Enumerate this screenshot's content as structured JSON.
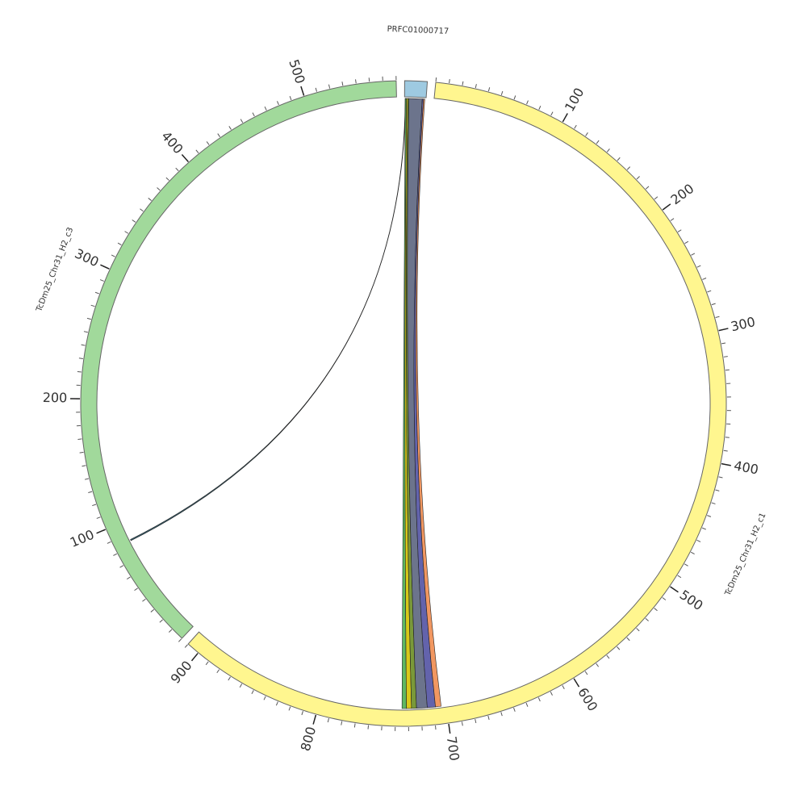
{
  "chart_data": {
    "type": "circos",
    "segments": [
      {
        "name": "PRFC01000717",
        "color": "#9ecae1",
        "length": 17,
        "ticks": []
      },
      {
        "name": "TcDm25_Chr31_H2_c1",
        "color": "#fff68f",
        "length": 910,
        "ticks": [
          100,
          200,
          300,
          400,
          500,
          600,
          700,
          800,
          900
        ]
      },
      {
        "name": "TcDm25_Chr31_H2_c3",
        "color": "#a1d99b",
        "length": 570,
        "ticks": [
          100,
          200,
          300,
          400,
          500
        ]
      }
    ],
    "tick_step": 10,
    "links": [
      {
        "source": 0,
        "source_range": [
          0.5,
          0.8
        ],
        "target": 2,
        "target_range": [
          84,
          85
        ],
        "color": "#1f4e5f"
      },
      {
        "source": 0,
        "source_range": [
          0.5,
          1.5
        ],
        "target": 1,
        "target_range": [
          731.5,
          735
        ],
        "color": "#4caf50"
      },
      {
        "source": 0,
        "source_range": [
          1.5,
          2.5
        ],
        "target": 1,
        "target_range": [
          727.5,
          731.5
        ],
        "color": "#d4c200"
      },
      {
        "source": 0,
        "source_range": [
          2.5,
          3.5
        ],
        "target": 1,
        "target_range": [
          723.5,
          727.5
        ],
        "color": "#6b8e23"
      },
      {
        "source": 0,
        "source_range": [
          3.5,
          14
        ],
        "target": 1,
        "target_range": [
          715,
          723.5
        ],
        "color": "#5c6580"
      },
      {
        "source": 0,
        "source_range": [
          14,
          15
        ],
        "target": 1,
        "target_range": [
          708.5,
          715
        ],
        "color": "#5252a3"
      },
      {
        "source": 0,
        "source_range": [
          15,
          16
        ],
        "target": 1,
        "target_range": [
          704,
          708.5
        ],
        "color": "#f08c50"
      }
    ]
  }
}
